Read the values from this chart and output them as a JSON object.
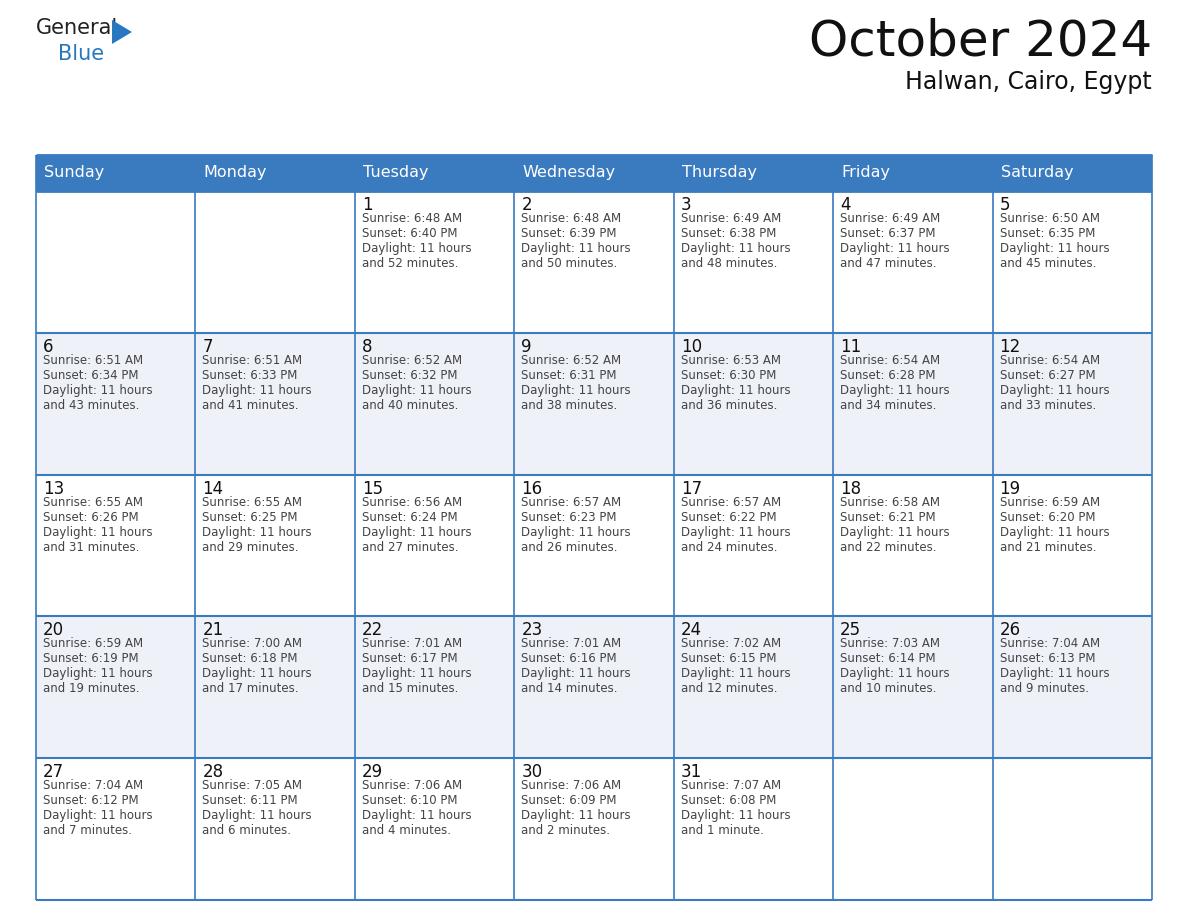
{
  "title": "October 2024",
  "subtitle": "Halwan, Cairo, Egypt",
  "header_color": "#3a7abf",
  "header_text_color": "#ffffff",
  "cell_bg_white": "#ffffff",
  "cell_bg_gray": "#eef1f7",
  "border_color": "#3a7abf",
  "text_color": "#444444",
  "day_number_color": "#111111",
  "days_of_week": [
    "Sunday",
    "Monday",
    "Tuesday",
    "Wednesday",
    "Thursday",
    "Friday",
    "Saturday"
  ],
  "weeks": [
    [
      {
        "day": "",
        "sunrise": "",
        "sunset": "",
        "daylight": ""
      },
      {
        "day": "",
        "sunrise": "",
        "sunset": "",
        "daylight": ""
      },
      {
        "day": "1",
        "sunrise": "6:48 AM",
        "sunset": "6:40 PM",
        "daylight_line3": "Daylight: 11 hours",
        "daylight_line4": "and 52 minutes."
      },
      {
        "day": "2",
        "sunrise": "6:48 AM",
        "sunset": "6:39 PM",
        "daylight_line3": "Daylight: 11 hours",
        "daylight_line4": "and 50 minutes."
      },
      {
        "day": "3",
        "sunrise": "6:49 AM",
        "sunset": "6:38 PM",
        "daylight_line3": "Daylight: 11 hours",
        "daylight_line4": "and 48 minutes."
      },
      {
        "day": "4",
        "sunrise": "6:49 AM",
        "sunset": "6:37 PM",
        "daylight_line3": "Daylight: 11 hours",
        "daylight_line4": "and 47 minutes."
      },
      {
        "day": "5",
        "sunrise": "6:50 AM",
        "sunset": "6:35 PM",
        "daylight_line3": "Daylight: 11 hours",
        "daylight_line4": "and 45 minutes."
      }
    ],
    [
      {
        "day": "6",
        "sunrise": "6:51 AM",
        "sunset": "6:34 PM",
        "daylight_line3": "Daylight: 11 hours",
        "daylight_line4": "and 43 minutes."
      },
      {
        "day": "7",
        "sunrise": "6:51 AM",
        "sunset": "6:33 PM",
        "daylight_line3": "Daylight: 11 hours",
        "daylight_line4": "and 41 minutes."
      },
      {
        "day": "8",
        "sunrise": "6:52 AM",
        "sunset": "6:32 PM",
        "daylight_line3": "Daylight: 11 hours",
        "daylight_line4": "and 40 minutes."
      },
      {
        "day": "9",
        "sunrise": "6:52 AM",
        "sunset": "6:31 PM",
        "daylight_line3": "Daylight: 11 hours",
        "daylight_line4": "and 38 minutes."
      },
      {
        "day": "10",
        "sunrise": "6:53 AM",
        "sunset": "6:30 PM",
        "daylight_line3": "Daylight: 11 hours",
        "daylight_line4": "and 36 minutes."
      },
      {
        "day": "11",
        "sunrise": "6:54 AM",
        "sunset": "6:28 PM",
        "daylight_line3": "Daylight: 11 hours",
        "daylight_line4": "and 34 minutes."
      },
      {
        "day": "12",
        "sunrise": "6:54 AM",
        "sunset": "6:27 PM",
        "daylight_line3": "Daylight: 11 hours",
        "daylight_line4": "and 33 minutes."
      }
    ],
    [
      {
        "day": "13",
        "sunrise": "6:55 AM",
        "sunset": "6:26 PM",
        "daylight_line3": "Daylight: 11 hours",
        "daylight_line4": "and 31 minutes."
      },
      {
        "day": "14",
        "sunrise": "6:55 AM",
        "sunset": "6:25 PM",
        "daylight_line3": "Daylight: 11 hours",
        "daylight_line4": "and 29 minutes."
      },
      {
        "day": "15",
        "sunrise": "6:56 AM",
        "sunset": "6:24 PM",
        "daylight_line3": "Daylight: 11 hours",
        "daylight_line4": "and 27 minutes."
      },
      {
        "day": "16",
        "sunrise": "6:57 AM",
        "sunset": "6:23 PM",
        "daylight_line3": "Daylight: 11 hours",
        "daylight_line4": "and 26 minutes."
      },
      {
        "day": "17",
        "sunrise": "6:57 AM",
        "sunset": "6:22 PM",
        "daylight_line3": "Daylight: 11 hours",
        "daylight_line4": "and 24 minutes."
      },
      {
        "day": "18",
        "sunrise": "6:58 AM",
        "sunset": "6:21 PM",
        "daylight_line3": "Daylight: 11 hours",
        "daylight_line4": "and 22 minutes."
      },
      {
        "day": "19",
        "sunrise": "6:59 AM",
        "sunset": "6:20 PM",
        "daylight_line3": "Daylight: 11 hours",
        "daylight_line4": "and 21 minutes."
      }
    ],
    [
      {
        "day": "20",
        "sunrise": "6:59 AM",
        "sunset": "6:19 PM",
        "daylight_line3": "Daylight: 11 hours",
        "daylight_line4": "and 19 minutes."
      },
      {
        "day": "21",
        "sunrise": "7:00 AM",
        "sunset": "6:18 PM",
        "daylight_line3": "Daylight: 11 hours",
        "daylight_line4": "and 17 minutes."
      },
      {
        "day": "22",
        "sunrise": "7:01 AM",
        "sunset": "6:17 PM",
        "daylight_line3": "Daylight: 11 hours",
        "daylight_line4": "and 15 minutes."
      },
      {
        "day": "23",
        "sunrise": "7:01 AM",
        "sunset": "6:16 PM",
        "daylight_line3": "Daylight: 11 hours",
        "daylight_line4": "and 14 minutes."
      },
      {
        "day": "24",
        "sunrise": "7:02 AM",
        "sunset": "6:15 PM",
        "daylight_line3": "Daylight: 11 hours",
        "daylight_line4": "and 12 minutes."
      },
      {
        "day": "25",
        "sunrise": "7:03 AM",
        "sunset": "6:14 PM",
        "daylight_line3": "Daylight: 11 hours",
        "daylight_line4": "and 10 minutes."
      },
      {
        "day": "26",
        "sunrise": "7:04 AM",
        "sunset": "6:13 PM",
        "daylight_line3": "Daylight: 11 hours",
        "daylight_line4": "and 9 minutes."
      }
    ],
    [
      {
        "day": "27",
        "sunrise": "7:04 AM",
        "sunset": "6:12 PM",
        "daylight_line3": "Daylight: 11 hours",
        "daylight_line4": "and 7 minutes."
      },
      {
        "day": "28",
        "sunrise": "7:05 AM",
        "sunset": "6:11 PM",
        "daylight_line3": "Daylight: 11 hours",
        "daylight_line4": "and 6 minutes."
      },
      {
        "day": "29",
        "sunrise": "7:06 AM",
        "sunset": "6:10 PM",
        "daylight_line3": "Daylight: 11 hours",
        "daylight_line4": "and 4 minutes."
      },
      {
        "day": "30",
        "sunrise": "7:06 AM",
        "sunset": "6:09 PM",
        "daylight_line3": "Daylight: 11 hours",
        "daylight_line4": "and 2 minutes."
      },
      {
        "day": "31",
        "sunrise": "7:07 AM",
        "sunset": "6:08 PM",
        "daylight_line3": "Daylight: 11 hours",
        "daylight_line4": "and 1 minute."
      },
      {
        "day": "",
        "sunrise": "",
        "sunset": "",
        "daylight_line3": "",
        "daylight_line4": ""
      },
      {
        "day": "",
        "sunrise": "",
        "sunset": "",
        "daylight_line3": "",
        "daylight_line4": ""
      }
    ]
  ]
}
